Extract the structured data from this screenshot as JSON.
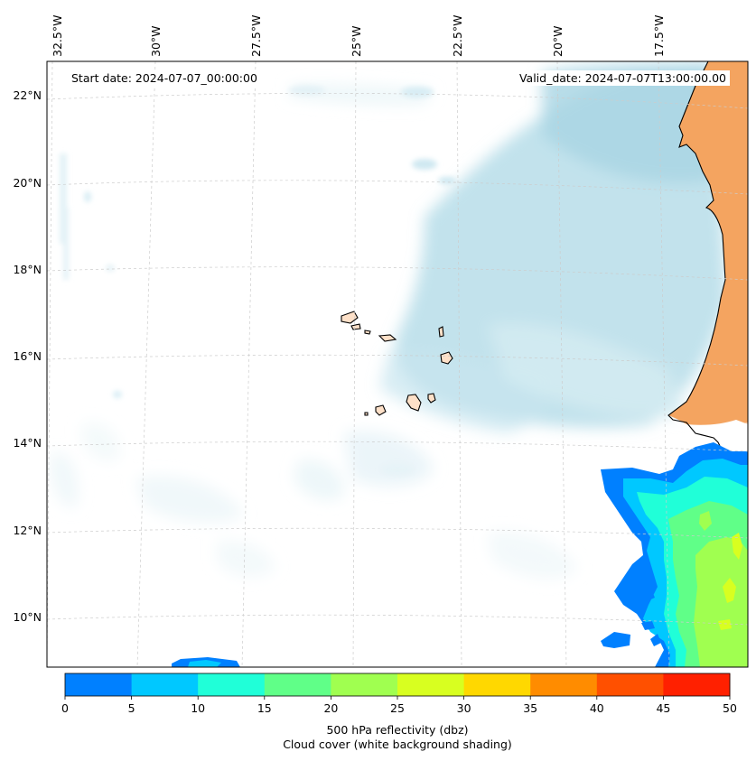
{
  "map": {
    "start_date_label": "Start date: 2024-07-07_00:00:00",
    "valid_date_label": "Valid_date: 2024-07-07T13:00:00.00",
    "lon_ticks": [
      "32.5°W",
      "30°W",
      "27.5°W",
      "25°W",
      "22.5°W",
      "20°W",
      "17.5°W"
    ],
    "lat_ticks": [
      "22°N",
      "20°N",
      "18°N",
      "16°N",
      "14°N",
      "12°N",
      "10°N"
    ],
    "land_color": "#f4a460",
    "cloud_color": "#add8e6"
  },
  "colorbar": {
    "ticks": [
      "0",
      "5",
      "10",
      "15",
      "20",
      "25",
      "30",
      "35",
      "40",
      "45",
      "50"
    ],
    "colors": [
      "#0080ff",
      "#00c8ff",
      "#20ffd8",
      "#60ff88",
      "#a0ff50",
      "#d8ff20",
      "#ffd800",
      "#ff8c00",
      "#ff5000",
      "#ff2000"
    ],
    "label_line1": "500 hPa reflectivity (dbz)",
    "label_line2": "Cloud cover (white background shading)"
  }
}
